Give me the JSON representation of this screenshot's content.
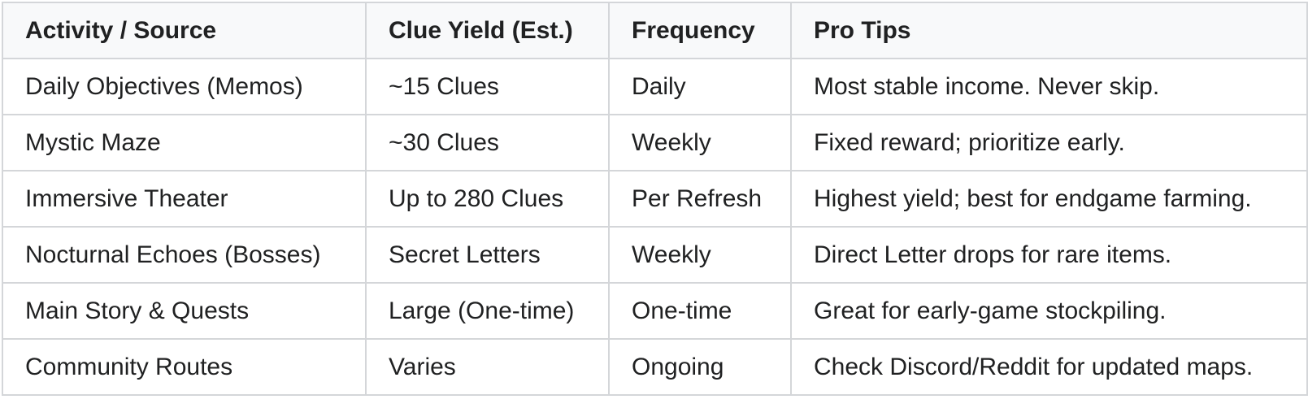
{
  "table": {
    "headers": [
      "Activity / Source",
      "Clue Yield (Est.)",
      "Frequency",
      "Pro Tips"
    ],
    "rows": [
      [
        "Daily Objectives (Memos)",
        "~15 Clues",
        "Daily",
        "Most stable income. Never skip."
      ],
      [
        "Mystic Maze",
        "~30 Clues",
        "Weekly",
        "Fixed reward; prioritize early."
      ],
      [
        "Immersive Theater",
        "Up to 280 Clues",
        "Per Refresh",
        "Highest yield; best for endgame farming."
      ],
      [
        "Nocturnal Echoes (Bosses)",
        "Secret Letters",
        "Weekly",
        "Direct Letter drops for rare items."
      ],
      [
        "Main Story & Quests",
        "Large (One-time)",
        "One-time",
        "Great for early-game stockpiling."
      ],
      [
        "Community Routes",
        "Varies",
        "Ongoing",
        "Check Discord/Reddit for updated maps."
      ]
    ]
  }
}
